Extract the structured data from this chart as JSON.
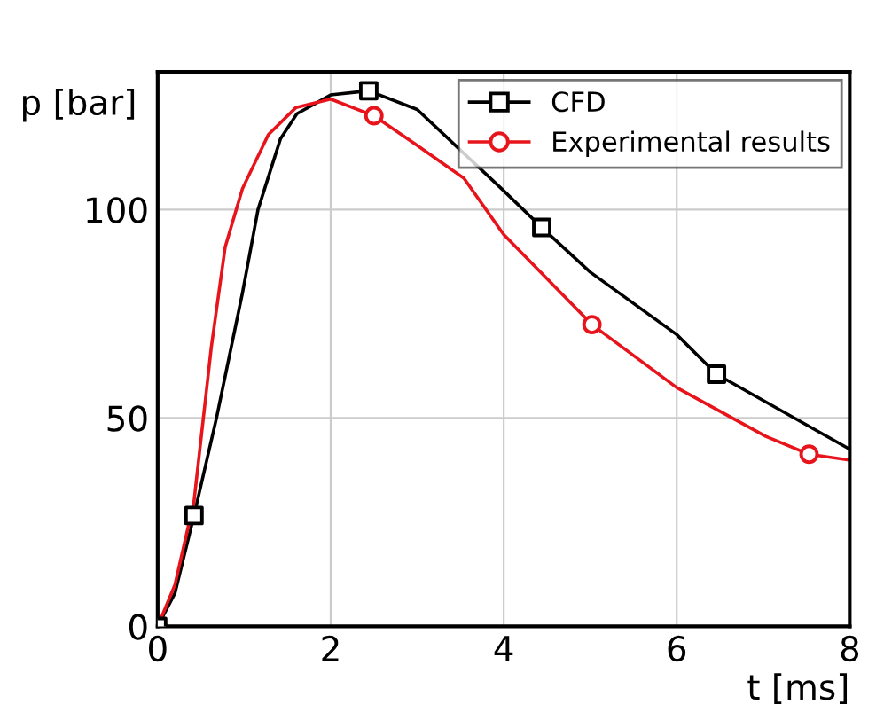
{
  "chart_data": {
    "type": "line",
    "xlabel": "t [ms]",
    "ylabel": "p [bar]",
    "xlim": [
      0,
      8
    ],
    "ylim": [
      0,
      133
    ],
    "xticks": [
      0,
      2,
      4,
      6,
      8
    ],
    "yticks": [
      0,
      50,
      100
    ],
    "grid": true,
    "legend": "top right",
    "series": [
      {
        "name": "CFD",
        "color": "#000000",
        "marker": "none",
        "x": [
          0,
          0.2,
          0.42,
          0.68,
          0.98,
          1.16,
          1.42,
          1.61,
          2.0,
          2.44,
          3.0,
          4.0,
          4.44,
          5.0,
          6.0,
          6.46,
          8.0
        ],
        "values": [
          0,
          8,
          26.6,
          50,
          80,
          100,
          117,
          123,
          127.5,
          128.5,
          124,
          104.5,
          95.7,
          85,
          70,
          60.5,
          42.5
        ]
      },
      {
        "name": "Experimental results",
        "color": "#e8141c",
        "marker": "none",
        "x": [
          0,
          0.2,
          0.42,
          0.62,
          0.78,
          0.98,
          1.28,
          1.6,
          2.0,
          2.5,
          3.0,
          3.54,
          4.0,
          5.02,
          6.0,
          7.03,
          7.53,
          8.0
        ],
        "values": [
          0,
          10,
          30,
          67,
          91,
          105,
          118,
          124.5,
          126.5,
          122.5,
          115.4,
          107.5,
          94,
          72.4,
          57.3,
          45.6,
          41.3,
          39.9
        ]
      },
      {
        "type": "scatter",
        "color": "#000000",
        "marker": "square",
        "x": [
          0,
          0.42,
          2.44,
          4.44,
          6.46
        ],
        "values": [
          0,
          26.6,
          128.5,
          95.7,
          60.5
        ]
      },
      {
        "type": "scatter",
        "color": "#e8141c",
        "marker": "circle",
        "x": [
          2.5,
          5.02,
          7.53
        ],
        "values": [
          122.5,
          72.4,
          41.3
        ]
      }
    ]
  }
}
